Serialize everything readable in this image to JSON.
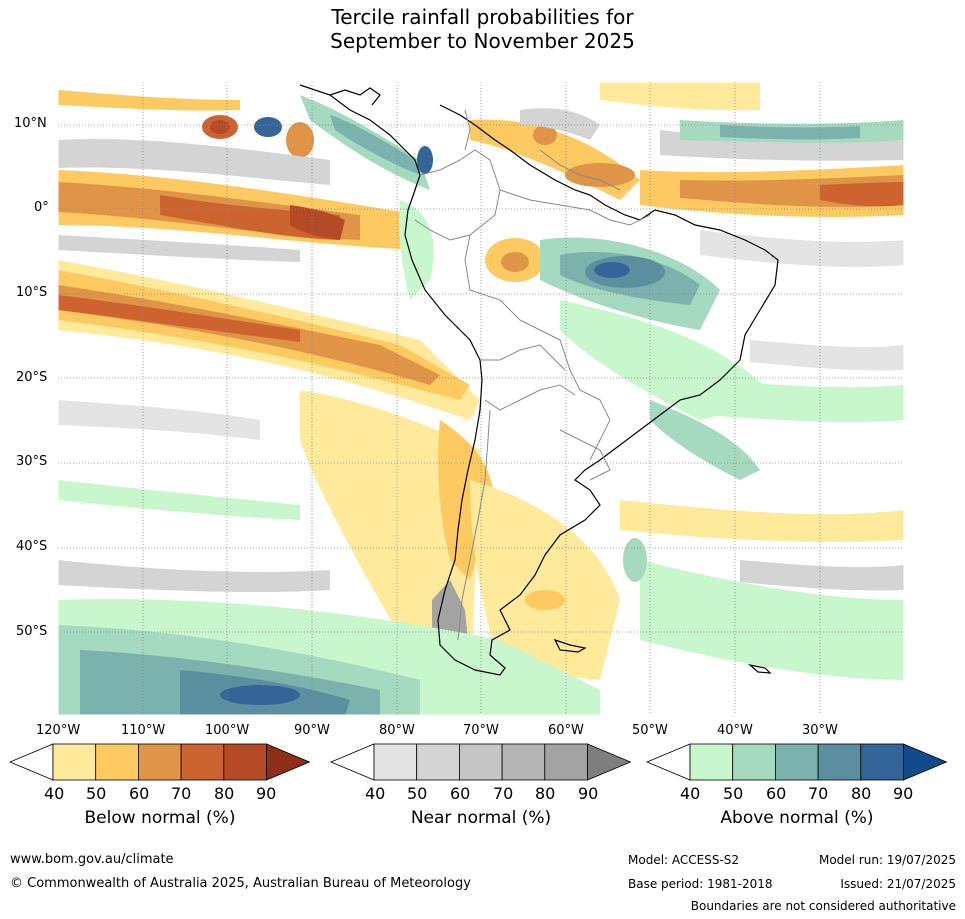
{
  "title": {
    "line1": "Tercile rainfall probabilities for",
    "line2": "September to November 2025"
  },
  "map": {
    "region": "South America",
    "lat_labels": [
      "10°N",
      "0°",
      "10°S",
      "20°S",
      "30°S",
      "40°S",
      "50°S"
    ],
    "lon_labels": [
      "120°W",
      "110°W",
      "100°W",
      "90°W",
      "80°W",
      "70°W",
      "60°W",
      "50°W",
      "40°W",
      "30°W"
    ],
    "background_color": "#ffffff",
    "gridlines": true
  },
  "colorbars": [
    {
      "label": "Below normal (%)",
      "ticks": [
        "40",
        "50",
        "60",
        "70",
        "80",
        "90"
      ],
      "colors": [
        "#ffffff",
        "#ffe99b",
        "#fdca62",
        "#e09448",
        "#cd6430",
        "#b44a26",
        "#8e2d1a"
      ]
    },
    {
      "label": "Near normal (%)",
      "ticks": [
        "40",
        "50",
        "60",
        "70",
        "80",
        "90"
      ],
      "colors": [
        "#ffffff",
        "#e4e4e4",
        "#d4d4d4",
        "#c5c5c5",
        "#b5b5b5",
        "#a3a3a3",
        "#7e7e7e"
      ]
    },
    {
      "label": "Above normal (%)",
      "ticks": [
        "40",
        "50",
        "60",
        "70",
        "80",
        "90"
      ],
      "colors": [
        "#ffffff",
        "#c8f7ce",
        "#a5d9c0",
        "#7bb2ad",
        "#5b8fa0",
        "#346598",
        "#114a8a"
      ]
    }
  ],
  "footer": {
    "url": "www.bom.gov.au/climate",
    "copyright": "© Commonwealth of Australia 2025, Australian Bureau of Meteorology",
    "model": "Model: ACCESS-S2",
    "base_period": "Base period: 1981-2018",
    "model_run": "Model run: 19/07/2025",
    "issued": "Issued: 21/07/2025",
    "disclaimer": "Boundaries are not considered authoritative"
  }
}
